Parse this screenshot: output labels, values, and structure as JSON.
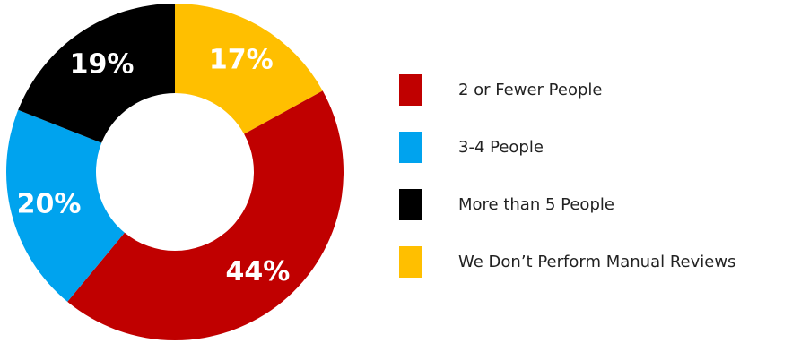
{
  "chart_data": {
    "type": "pie",
    "donut": true,
    "categories": [
      "2 or Fewer People",
      "3-4 People",
      "More than 5 People",
      "We Don’t Perform Manual Reviews"
    ],
    "values": [
      44,
      20,
      19,
      17
    ],
    "value_labels": [
      "44%",
      "20%",
      "19%",
      "17%"
    ],
    "colors": [
      "#c00000",
      "#00a3ee",
      "#000000",
      "#ffbf00"
    ],
    "legend_position": "right",
    "start": "top, clockwise",
    "slice_order": [
      "We Don’t Perform Manual Reviews",
      "2 or Fewer People",
      "3-4 People",
      "More than 5 People"
    ]
  }
}
